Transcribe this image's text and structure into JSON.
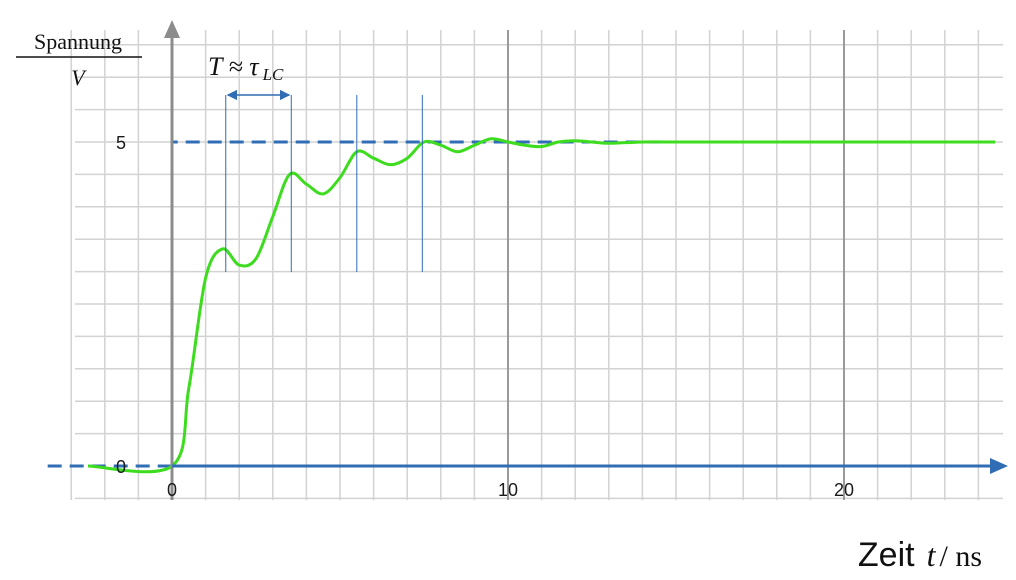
{
  "chart_data": {
    "type": "line",
    "xlabel": {
      "word": "Zeit",
      "var": "t",
      "sep": " / ",
      "unit": "ns"
    },
    "ylabel": {
      "numerator": "Spannung",
      "denominator": "V"
    },
    "x_tick_labels": [
      {
        "value": 0,
        "label": "0"
      },
      {
        "value": 10,
        "label": "10"
      },
      {
        "value": 20,
        "label": "20"
      }
    ],
    "y_tick_labels": [
      {
        "value": 0,
        "label": "0"
      },
      {
        "value": 5,
        "label": "5"
      }
    ],
    "xlim": [
      -4,
      24.5
    ],
    "ylim": [
      0,
      6.5
    ],
    "grid": true,
    "minor_grid_step_x": 1,
    "major_grid_step_x": 10,
    "minor_grid_step_y": 0.5,
    "series": [
      {
        "style": "dashed",
        "color": "#2f6db4",
        "x": [
          -3.7,
          0,
          0,
          24.5
        ],
        "y": [
          0,
          0,
          5,
          5
        ]
      },
      {
        "style": "solid",
        "color": "#3ddc1e",
        "x": [
          -2.5,
          0,
          0.5,
          1.0,
          1.5,
          2.0,
          2.5,
          3.0,
          3.5,
          4.0,
          4.5,
          5.0,
          5.5,
          6.0,
          6.5,
          7.0,
          7.5,
          8.0,
          8.5,
          9.0,
          9.5,
          10.0,
          10.5,
          11.0,
          11.5,
          12.0,
          12.5,
          13.0,
          14.0,
          15.0,
          16.0,
          18.0,
          20.0,
          24.5
        ],
        "y": [
          0,
          0,
          1.2,
          2.9,
          3.35,
          3.1,
          3.2,
          3.85,
          4.5,
          4.35,
          4.2,
          4.45,
          4.85,
          4.75,
          4.65,
          4.75,
          5.0,
          4.95,
          4.85,
          4.95,
          5.05,
          5.0,
          4.95,
          4.93,
          5.0,
          5.02,
          5.0,
          4.98,
          5.0,
          5.0,
          5.0,
          5.0,
          5.0,
          5.0
        ]
      }
    ],
    "annotations": {
      "period_text": "T ≈ τ",
      "period_subscript": "LC",
      "period_from_x": 1.6,
      "period_to_x": 3.55,
      "period_markers_x": [
        1.6,
        3.55,
        5.5,
        7.45
      ]
    }
  }
}
